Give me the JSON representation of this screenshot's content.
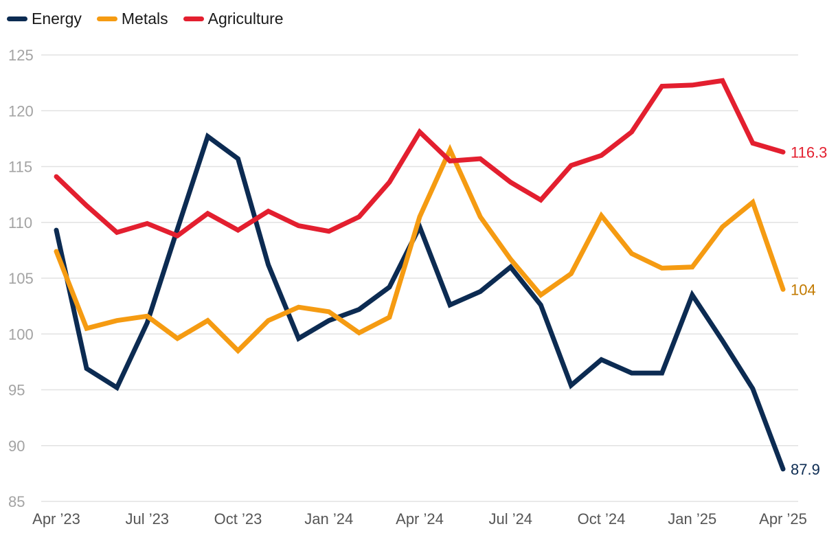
{
  "chart_data": {
    "type": "line",
    "x": [
      "Apr '23",
      "May '23",
      "Jun '23",
      "Jul '23",
      "Aug '23",
      "Sep '23",
      "Oct '23",
      "Nov '23",
      "Dec '23",
      "Jan '24",
      "Feb '24",
      "Mar '24",
      "Apr '24",
      "May '24",
      "Jun '24",
      "Jul '24",
      "Aug '24",
      "Sep '24",
      "Oct '24",
      "Nov '24",
      "Dec '24",
      "Jan '25",
      "Feb '25",
      "Mar '25",
      "Apr '25"
    ],
    "x_tick_labels": [
      "Apr ’23",
      "Jul ’23",
      "Oct ’23",
      "Jan ’24",
      "Apr ’24",
      "Jul ’24",
      "Oct ’24",
      "Jan ’25",
      "Apr ’25"
    ],
    "x_tick_indices": [
      0,
      3,
      6,
      9,
      12,
      15,
      18,
      21,
      24
    ],
    "y_ticks": [
      85,
      90,
      95,
      100,
      105,
      110,
      115,
      120,
      125
    ],
    "ylim": [
      85,
      125
    ],
    "grid": true,
    "legend_position": "top-left",
    "series": [
      {
        "name": "Energy",
        "color": "#0c2b52",
        "values": [
          109.3,
          96.9,
          95.2,
          101.0,
          109.4,
          117.7,
          115.7,
          106.2,
          99.6,
          101.2,
          102.2,
          104.2,
          109.6,
          102.6,
          103.8,
          106.0,
          102.6,
          95.4,
          97.7,
          96.5,
          96.5,
          103.5,
          99.4,
          95.1,
          87.9
        ],
        "end_label": "87.9"
      },
      {
        "name": "Metals",
        "color": "#f59b12",
        "values": [
          107.4,
          100.5,
          101.2,
          101.6,
          99.6,
          101.2,
          98.5,
          101.2,
          102.4,
          102.0,
          100.1,
          101.5,
          110.5,
          116.5,
          110.5,
          106.7,
          103.5,
          105.4,
          110.6,
          107.2,
          105.9,
          106.0,
          109.6,
          111.8,
          104.0
        ],
        "end_label": "104",
        "end_label_color": "#c27a00"
      },
      {
        "name": "Agriculture",
        "color": "#e31f2f",
        "values": [
          114.1,
          111.5,
          109.1,
          109.9,
          108.8,
          110.8,
          109.3,
          111.0,
          109.7,
          109.2,
          110.5,
          113.6,
          118.1,
          115.5,
          115.7,
          113.6,
          112.0,
          115.1,
          116.0,
          118.1,
          122.2,
          122.3,
          122.7,
          117.1,
          116.3
        ],
        "end_label": "116.3"
      }
    ]
  }
}
